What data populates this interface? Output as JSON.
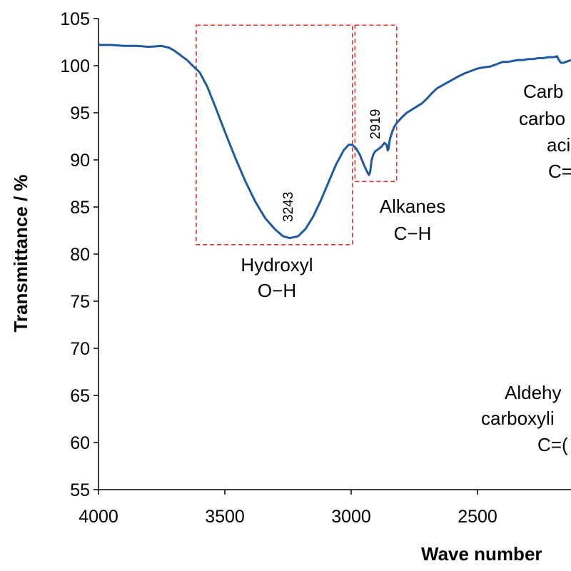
{
  "chart_data": {
    "type": "line",
    "xlabel": "Wave number",
    "ylabel": "Transmittance / %",
    "xlim": [
      4000,
      2130
    ],
    "ylim": [
      55,
      105
    ],
    "x_reversed": true,
    "x_ticks": [
      4000,
      3500,
      3000,
      2500
    ],
    "y_ticks": [
      55,
      60,
      65,
      70,
      75,
      80,
      85,
      90,
      95,
      100,
      105
    ],
    "grid": false,
    "line_color": "#1f5a9e",
    "box_color": "#e8312f",
    "series": [
      {
        "x": [
          4000,
          3950,
          3900,
          3850,
          3800,
          3750,
          3720,
          3700,
          3680,
          3650,
          3620,
          3600,
          3570,
          3540,
          3500,
          3460,
          3420,
          3380,
          3340,
          3300,
          3270,
          3243,
          3210,
          3180,
          3150,
          3120,
          3090,
          3060,
          3030,
          3010,
          2995,
          2980,
          2965,
          2950,
          2940,
          2930,
          2925,
          2919,
          2912,
          2905,
          2895,
          2880,
          2868,
          2860,
          2855,
          2852,
          2847,
          2840,
          2830,
          2820,
          2800,
          2780,
          2750,
          2720,
          2700,
          2680,
          2660,
          2640,
          2620,
          2600,
          2580,
          2550,
          2520,
          2500,
          2480,
          2450,
          2420,
          2400,
          2380,
          2360,
          2340,
          2320,
          2300,
          2280,
          2260,
          2240,
          2220,
          2200,
          2185,
          2180,
          2175,
          2170,
          2160,
          2150,
          2140,
          2130
        ],
        "y": [
          102.2,
          102.2,
          102.1,
          102.1,
          102.0,
          102.1,
          101.9,
          101.6,
          101.2,
          100.6,
          99.8,
          99.3,
          97.8,
          95.8,
          93.0,
          90.3,
          87.8,
          85.6,
          83.8,
          82.6,
          81.9,
          81.7,
          81.9,
          82.7,
          84.0,
          85.7,
          87.6,
          89.5,
          91.0,
          91.6,
          91.6,
          91.2,
          90.5,
          89.5,
          88.9,
          88.4,
          88.7,
          90.0,
          90.6,
          90.9,
          91.1,
          91.4,
          91.8,
          91.6,
          91.0,
          91.2,
          92.2,
          92.8,
          93.5,
          93.9,
          94.5,
          95.0,
          95.5,
          96.0,
          96.5,
          97.1,
          97.6,
          97.9,
          98.2,
          98.5,
          98.8,
          99.2,
          99.5,
          99.7,
          99.8,
          99.9,
          100.2,
          100.4,
          100.4,
          100.5,
          100.6,
          100.6,
          100.7,
          100.7,
          100.8,
          100.8,
          100.9,
          100.9,
          101.0,
          100.7,
          100.5,
          100.3,
          100.3,
          100.4,
          100.5,
          100.6
        ]
      }
    ],
    "annotations": {
      "hydroxyl_line1": "Hydroxyl",
      "hydroxyl_line2": "O−H",
      "alkanes_line1": "Alkanes",
      "alkanes_line2": "C−H",
      "peak_3243": "3243",
      "peak_2919": "2919",
      "carb_line1": "Carb",
      "carb_line2": "carbo",
      "carb_line3": "aci",
      "carb_line4": "C=",
      "ald_line1": "Aldehy",
      "ald_line2": "carboxyli",
      "ald_line3": "C=("
    },
    "boxes": [
      {
        "name": "hydroxyl",
        "x": [
          3613,
          2995
        ],
        "y": [
          81,
          104.3
        ]
      },
      {
        "name": "alkanes",
        "x": [
          2985,
          2820
        ],
        "y": [
          87.7,
          104.3
        ]
      }
    ]
  }
}
